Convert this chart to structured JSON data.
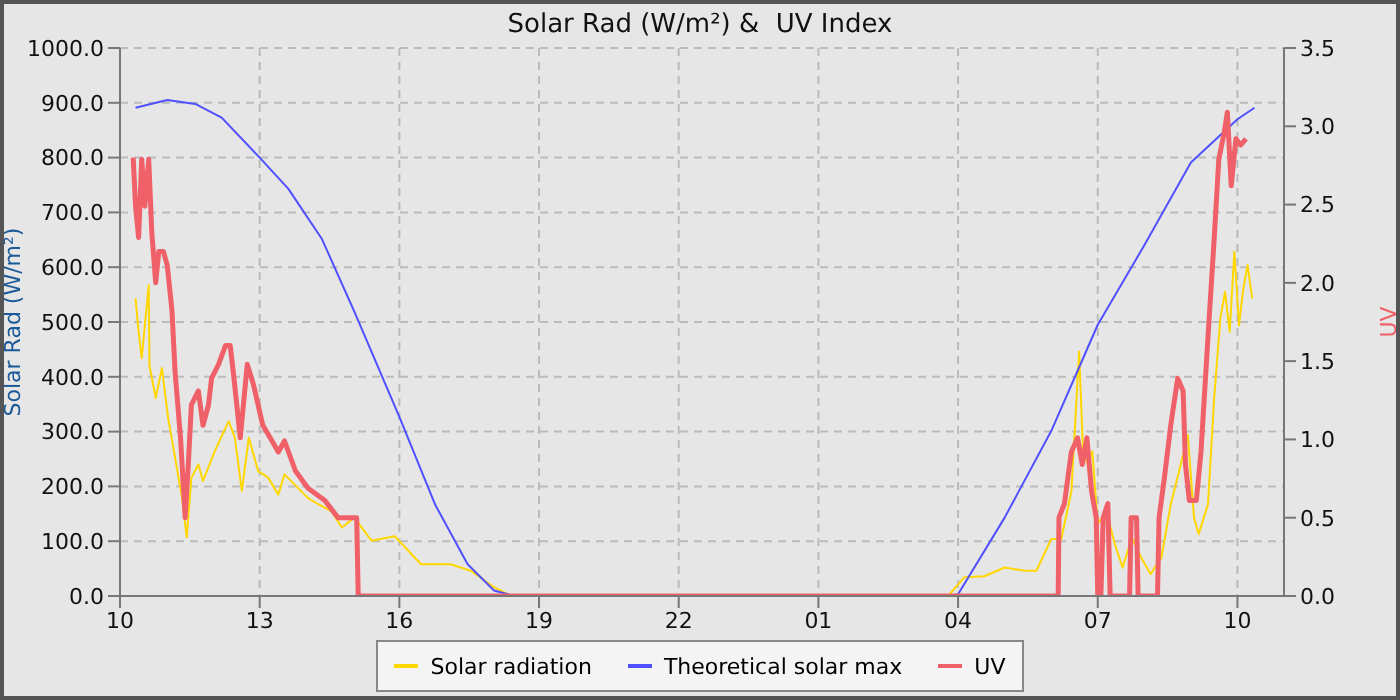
{
  "chart_data": {
    "type": "line",
    "title": "Solar Rad (W/m²) &  UV Index",
    "ylabel": "Solar Rad (W/m²)",
    "y2label": "UV",
    "xlim": [
      "--01-01T10:00",
      "--01-02T11:00"
    ],
    "xticks": [
      {
        "value": "--01-01T10:00",
        "label": "10"
      },
      {
        "value": "--01-01T13:00",
        "label": "13"
      },
      {
        "value": "--01-01T16:00",
        "label": "16"
      },
      {
        "value": "--01-01T19:00",
        "label": "19"
      },
      {
        "value": "--01-01T22:00",
        "label": "22"
      },
      {
        "value": "--01-02T01:00",
        "label": "01"
      },
      {
        "value": "--01-02T04:00",
        "label": "04"
      },
      {
        "value": "--01-02T07:00",
        "label": "07"
      },
      {
        "value": "--01-02T10:00",
        "label": "10"
      }
    ],
    "ylim": [
      0,
      1000
    ],
    "yticks": [
      {
        "value": 0,
        "label": "0.0"
      },
      {
        "value": 100,
        "label": "100.0"
      },
      {
        "value": 200,
        "label": "200.0"
      },
      {
        "value": 300,
        "label": "300.0"
      },
      {
        "value": 400,
        "label": "400.0"
      },
      {
        "value": 500,
        "label": "500.0"
      },
      {
        "value": 600,
        "label": "600.0"
      },
      {
        "value": 700,
        "label": "700.0"
      },
      {
        "value": 800,
        "label": "800.0"
      },
      {
        "value": 900,
        "label": "900.0"
      },
      {
        "value": 1000,
        "label": "1000.0"
      }
    ],
    "y2lim": [
      0,
      3.5
    ],
    "y2ticks": [
      {
        "value": 0,
        "label": "0.0"
      },
      {
        "value": 0.5,
        "label": "0.5"
      },
      {
        "value": 1,
        "label": "1.0"
      },
      {
        "value": 1.5,
        "label": "1.5"
      },
      {
        "value": 2,
        "label": "2.0"
      },
      {
        "value": 2.5,
        "label": "2.5"
      },
      {
        "value": 3,
        "label": "3.0"
      },
      {
        "value": 3.5,
        "label": "3.5"
      }
    ],
    "grid": true,
    "legend": "bottom",
    "marker": "none",
    "line_style": "solid",
    "series": [
      {
        "name": "Solar radiation",
        "color": "#ffd700",
        "x": [
          "--01-01T10:20",
          "--01-01T10:24",
          "--01-01T10:28",
          "--01-01T10:32",
          "--01-01T10:37",
          "--01-01T10:38",
          "--01-01T10:46",
          "--01-01T10:54",
          "--01-01T11:02",
          "--01-01T11:11",
          "--01-01T11:20",
          "--01-01T11:26",
          "--01-01T11:32",
          "--01-01T11:41",
          "--01-01T11:47",
          "--01-01T12:02",
          "--01-01T12:20",
          "--01-01T12:28",
          "--01-01T12:37",
          "--01-01T12:46",
          "--01-01T12:58",
          "--01-01T13:11",
          "--01-01T13:24",
          "--01-01T13:32",
          "--01-01T14:02",
          "--01-01T14:16",
          "--01-01T14:32",
          "--01-01T14:46",
          "--01-01T15:02",
          "--01-01T15:24",
          "--01-01T15:54",
          "--01-01T16:28",
          "--01-01T17:06",
          "--01-01T17:32",
          "--01-01T18:02",
          "--01-01T18:24",
          "--01-02T03:47",
          "--01-02T04:08",
          "--01-02T04:34",
          "--01-02T05:00",
          "--01-02T05:26",
          "--01-02T05:41",
          "--01-02T06:00",
          "--01-02T06:13",
          "--01-02T06:26",
          "--01-02T06:36",
          "--01-02T06:41",
          "--01-02T06:47",
          "--01-02T06:53",
          "--01-02T07:00",
          "--01-02T07:11",
          "--01-02T07:22",
          "--01-02T07:32",
          "--01-02T07:44",
          "--01-02T07:56",
          "--01-02T08:08",
          "--01-02T08:22",
          "--01-02T08:34",
          "--01-02T08:47",
          "--01-02T08:56",
          "--01-02T09:04",
          "--01-02T09:10",
          "--01-02T09:22",
          "--01-02T09:30",
          "--01-02T09:38",
          "--01-02T09:44",
          "--01-02T09:50",
          "--01-02T09:56",
          "--01-02T10:02",
          "--01-02T10:07",
          "--01-02T10:13",
          "--01-02T10:19"
        ],
        "values": [
          543,
          482,
          434,
          494,
          567,
          420,
          361,
          416,
          325,
          252,
          179,
          107,
          216,
          240,
          210,
          264,
          319,
          289,
          192,
          289,
          228,
          216,
          185,
          222,
          179,
          167,
          155,
          125,
          143,
          101,
          109,
          58,
          58,
          46,
          16,
          0,
          0,
          34,
          36,
          52,
          46,
          46,
          104,
          104,
          191,
          446,
          264,
          240,
          264,
          131,
          155,
          95,
          52,
          107,
          70,
          40,
          70,
          167,
          240,
          294,
          143,
          113,
          167,
          361,
          507,
          555,
          482,
          628,
          494,
          555,
          604,
          543
        ]
      },
      {
        "name": "Theoretical solar max",
        "color": "#5050ff",
        "x": [
          "--01-01T10:20",
          "--01-01T11:01",
          "--01-01T11:37",
          "--01-01T12:11",
          "--01-01T13:00",
          "--01-01T13:37",
          "--01-01T14:20",
          "--01-01T15:02",
          "--01-01T16:00",
          "--01-01T16:46",
          "--01-01T17:28",
          "--01-01T18:02",
          "--01-01T18:28",
          "--01-02T03:47",
          "--01-02T04:00",
          "--01-02T05:00",
          "--01-02T06:00",
          "--01-02T07:00",
          "--01-02T08:00",
          "--01-02T09:00",
          "--01-02T10:00",
          "--01-02T10:22"
        ],
        "values": [
          891,
          905,
          898,
          873,
          800,
          743,
          652,
          519,
          327,
          167,
          58,
          10,
          0,
          0,
          3,
          143,
          301,
          495,
          640,
          791,
          870,
          891
        ]
      },
      {
        "name": "UV",
        "color": "#f06068",
        "axis": "y2",
        "x": [
          "--01-01T10:17",
          "--01-01T10:20",
          "--01-01T10:24",
          "--01-01T10:28",
          "--01-01T10:32",
          "--01-01T10:37",
          "--01-01T10:41",
          "--01-01T10:46",
          "--01-01T10:50",
          "--01-01T10:56",
          "--01-01T11:01",
          "--01-01T11:07",
          "--01-01T11:11",
          "--01-01T11:18",
          "--01-01T11:24",
          "--01-01T11:28",
          "--01-01T11:32",
          "--01-01T11:41",
          "--01-01T11:47",
          "--01-01T11:54",
          "--01-01T11:58",
          "--01-01T12:07",
          "--01-01T12:16",
          "--01-01T12:22",
          "--01-01T12:26",
          "--01-01T12:35",
          "--01-01T12:44",
          "--01-01T12:52",
          "--01-01T13:04",
          "--01-01T13:16",
          "--01-01T13:24",
          "--01-01T13:32",
          "--01-01T13:46",
          "--01-01T14:02",
          "--01-01T14:24",
          "--01-01T14:41",
          "--01-01T15:05",
          "--01-01T15:07",
          "--01-02T06:09",
          "--01-02T06:10",
          "--01-02T06:17",
          "--01-02T06:26",
          "--01-02T06:34",
          "--01-02T06:40",
          "--01-02T06:46",
          "--01-02T06:52",
          "--01-02T06:58",
          "--01-02T07:00",
          "--01-02T07:04",
          "--01-02T07:07",
          "--01-02T07:13",
          "--01-02T07:16",
          "--01-02T07:41",
          "--01-02T07:43",
          "--01-02T07:50",
          "--01-02T07:52",
          "--01-02T08:17",
          "--01-02T08:19",
          "--01-02T08:26",
          "--01-02T08:34",
          "--01-02T08:43",
          "--01-02T08:50",
          "--01-02T08:53",
          "--01-02T08:58",
          "--01-02T09:07",
          "--01-02T09:13",
          "--01-02T09:22",
          "--01-02T09:30",
          "--01-02T09:36",
          "--01-02T09:43",
          "--01-02T09:47",
          "--01-02T09:52",
          "--01-02T09:58",
          "--01-02T10:04",
          "--01-02T10:11"
        ],
        "values": [
          2.8,
          2.49,
          2.29,
          2.79,
          2.49,
          2.79,
          2.32,
          2.0,
          2.2,
          2.2,
          2.11,
          1.82,
          1.43,
          1.01,
          0.5,
          0.84,
          1.22,
          1.31,
          1.09,
          1.22,
          1.39,
          1.48,
          1.6,
          1.6,
          1.43,
          1.01,
          1.48,
          1.35,
          1.09,
          0.99,
          0.92,
          0.99,
          0.8,
          0.69,
          0.61,
          0.5,
          0.5,
          0,
          0,
          0.5,
          0.59,
          0.92,
          1.01,
          0.84,
          1.01,
          0.67,
          0.5,
          0,
          0,
          0.5,
          0.59,
          0,
          0,
          0.5,
          0.5,
          0,
          0,
          0.5,
          0.76,
          1.09,
          1.39,
          1.31,
          0.84,
          0.61,
          0.61,
          0.92,
          1.65,
          2.28,
          2.79,
          2.96,
          3.09,
          2.62,
          2.92,
          2.88,
          2.92
        ]
      }
    ]
  }
}
